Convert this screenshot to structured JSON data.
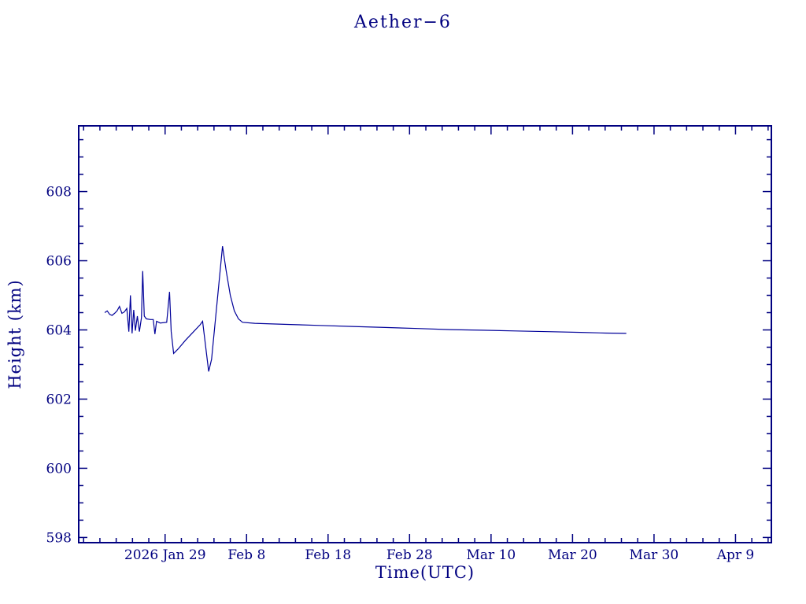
{
  "page": {
    "background_color": "#ffffff"
  },
  "chart_data": {
    "type": "line",
    "title": "Aether−6",
    "xlabel": "Time(UTC)",
    "ylabel": "Height (km)",
    "axis_color": "#000080",
    "line_color": "#000099",
    "grid": false,
    "legend": "none",
    "x_units_note": "day of year 2026 (Jan 29 = 29)",
    "xlim": [
      18.4,
      103.4
    ],
    "ylim": [
      597.85,
      609.9
    ],
    "x_ticks": [
      {
        "value": 29,
        "label": "2026 Jan 29"
      },
      {
        "value": 39,
        "label": "Feb 8"
      },
      {
        "value": 49,
        "label": "Feb 18"
      },
      {
        "value": 59,
        "label": "Feb 28"
      },
      {
        "value": 69,
        "label": "Mar 10"
      },
      {
        "value": 79,
        "label": "Mar 20"
      },
      {
        "value": 89,
        "label": "Mar 30"
      },
      {
        "value": 99,
        "label": "Apr 9"
      }
    ],
    "x_minor_step": 2,
    "y_ticks": [
      {
        "value": 598,
        "label": "598"
      },
      {
        "value": 600,
        "label": "600"
      },
      {
        "value": 602,
        "label": "602"
      },
      {
        "value": 604,
        "label": "604"
      },
      {
        "value": 606,
        "label": "606"
      },
      {
        "value": 608,
        "label": "608"
      }
    ],
    "y_minor_step": 0.5,
    "series": [
      {
        "name": "height_km",
        "points": [
          [
            21.6,
            604.5
          ],
          [
            21.9,
            604.55
          ],
          [
            22.2,
            604.45
          ],
          [
            22.5,
            604.42
          ],
          [
            22.8,
            604.48
          ],
          [
            23.1,
            604.55
          ],
          [
            23.4,
            604.68
          ],
          [
            23.7,
            604.48
          ],
          [
            24.0,
            604.52
          ],
          [
            24.3,
            604.62
          ],
          [
            24.55,
            603.95
          ],
          [
            24.75,
            605.0
          ],
          [
            24.95,
            603.9
          ],
          [
            25.15,
            604.58
          ],
          [
            25.35,
            603.98
          ],
          [
            25.6,
            604.4
          ],
          [
            25.85,
            603.95
          ],
          [
            26.1,
            604.35
          ],
          [
            26.25,
            605.7
          ],
          [
            26.45,
            604.4
          ],
          [
            26.7,
            604.32
          ],
          [
            27.2,
            604.3
          ],
          [
            27.55,
            604.3
          ],
          [
            27.75,
            603.88
          ],
          [
            27.95,
            604.25
          ],
          [
            28.4,
            604.2
          ],
          [
            29.2,
            604.22
          ],
          [
            29.55,
            605.1
          ],
          [
            29.75,
            603.95
          ],
          [
            30.05,
            603.32
          ],
          [
            30.6,
            603.45
          ],
          [
            31.5,
            603.7
          ],
          [
            32.5,
            603.95
          ],
          [
            33.3,
            604.15
          ],
          [
            33.6,
            604.25
          ],
          [
            34.35,
            602.8
          ],
          [
            34.7,
            603.15
          ],
          [
            36.05,
            606.42
          ],
          [
            36.5,
            605.7
          ],
          [
            37.0,
            605.0
          ],
          [
            37.5,
            604.55
          ],
          [
            38.0,
            604.32
          ],
          [
            38.5,
            604.22
          ],
          [
            40.0,
            604.19
          ],
          [
            44.0,
            604.16
          ],
          [
            48.0,
            604.13
          ],
          [
            52.0,
            604.1
          ],
          [
            56.0,
            604.07
          ],
          [
            60.0,
            604.04
          ],
          [
            64.0,
            604.01
          ],
          [
            68.0,
            603.99
          ],
          [
            72.0,
            603.97
          ],
          [
            76.0,
            603.95
          ],
          [
            80.0,
            603.93
          ],
          [
            83.0,
            603.91
          ],
          [
            85.6,
            603.9
          ]
        ]
      }
    ]
  }
}
